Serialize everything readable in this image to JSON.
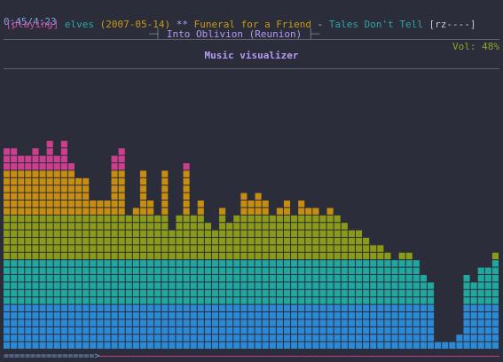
{
  "header": {
    "time": "0:45/4:23",
    "bracket_left": "─┤ ",
    "title": "Into Oblivion (Reunion)",
    "bracket_right": " ├─",
    "volume": "Vol: 48%"
  },
  "status": {
    "state": "[playing]",
    "artist": "elves",
    "date": "(2007-05-14)",
    "stars": "**",
    "album": "Funeral for a Friend",
    "dash": "-",
    "track": "Tales Don't Tell",
    "flags": "[rz----]"
  },
  "visualizer": {
    "title": "Music visualizer",
    "levels": [
      0.75,
      0.75,
      0.73,
      0.73,
      0.75,
      0.73,
      0.78,
      0.73,
      0.78,
      0.71,
      0.63,
      0.63,
      0.57,
      0.55,
      0.57,
      0.73,
      0.75,
      0.51,
      0.52,
      0.68,
      0.57,
      0.51,
      0.66,
      0.46,
      0.51,
      0.69,
      0.5,
      0.55,
      0.47,
      0.45,
      0.53,
      0.48,
      0.49,
      0.6,
      0.57,
      0.6,
      0.57,
      0.5,
      0.53,
      0.55,
      0.5,
      0.57,
      0.53,
      0.53,
      0.51,
      0.53,
      0.5,
      0.47,
      0.44,
      0.46,
      0.41,
      0.38,
      0.38,
      0.35,
      0.34,
      0.35,
      0.35,
      0.33,
      0.29,
      0.26,
      0.03,
      0.04,
      0.03,
      0.05,
      0.29,
      0.26,
      0.31,
      0.31,
      0.37
    ],
    "colors": {
      "band1": "#2c89d6",
      "band2": "#1fa7a0",
      "band3": "#8b9b18",
      "band4": "#c68d10",
      "band5": "#cd3f8e",
      "background": "#2b2d3a"
    }
  },
  "progress": {
    "fraction": 0.18,
    "filled_char": "=",
    "head_char": ">",
    "color_filled": "#7fa3d8",
    "color_rest": "#c2428a"
  }
}
